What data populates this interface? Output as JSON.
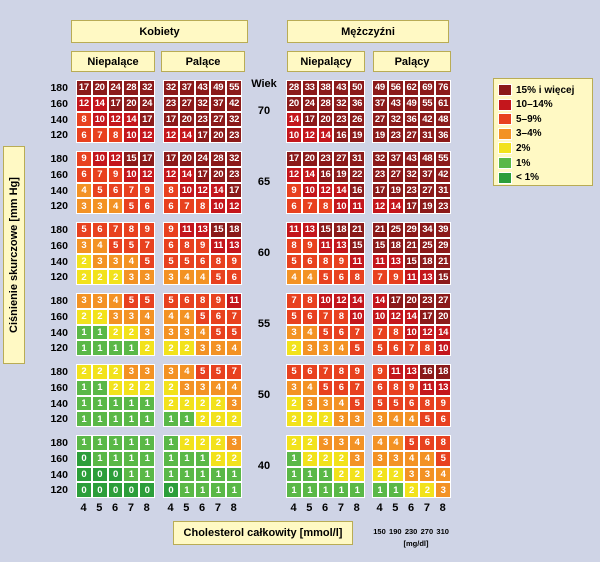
{
  "headers": {
    "women": "Kobiety",
    "men": "Mężczyźni",
    "women_nonsmoking": "Niepalące",
    "women_smoking": "Palące",
    "men_nonsmoking": "Niepalący",
    "men_smoking": "Palący",
    "age_label": "Wiek"
  },
  "axis": {
    "y_label": "Ciśnienie skurczowe [mm Hg]",
    "x_label": "Cholesterol całkowity [mmol/l]",
    "x_ticks_mmol": [
      "4",
      "5",
      "6",
      "7",
      "8"
    ],
    "x_ticks_mgdl": [
      "150",
      "190",
      "230",
      "270",
      "310"
    ],
    "mgdl_unit": "[mg/dl]",
    "sbp_ticks": [
      "180",
      "160",
      "140",
      "120"
    ]
  },
  "legend": [
    {
      "label": "15% i więcej",
      "color": "#8b1a1a"
    },
    {
      "label": "10–14%",
      "color": "#c4161c"
    },
    {
      "label": "5–9%",
      "color": "#e8411f"
    },
    {
      "label": "3–4%",
      "color": "#f39224"
    },
    {
      "label": "2%",
      "color": "#f2e21c"
    },
    {
      "label": "1%",
      "color": "#5ab847"
    },
    {
      "label": "< 1%",
      "color": "#2c9e3a"
    }
  ],
  "chart_data": {
    "type": "heatmap",
    "title": "",
    "xlabel": "Cholesterol całkowity [mmol/l]",
    "ylabel": "Ciśnienie skurczowe [mm Hg]",
    "x": [
      4,
      5,
      6,
      7,
      8
    ],
    "y_sbp": [
      180,
      160,
      140,
      120
    ],
    "ages": [
      70,
      65,
      60,
      55,
      50,
      40
    ],
    "color_bins": [
      {
        "min": 15,
        "label": "15% i więcej"
      },
      {
        "min": 10,
        "max": 14,
        "label": "10–14%"
      },
      {
        "min": 5,
        "max": 9,
        "label": "5–9%"
      },
      {
        "min": 3,
        "max": 4,
        "label": "3–4%"
      },
      {
        "min": 2,
        "max": 2,
        "label": "2%"
      },
      {
        "min": 1,
        "max": 1,
        "label": "1%"
      },
      {
        "max": 0,
        "label": "< 1%"
      }
    ],
    "panels": [
      {
        "group": "Kobiety",
        "subgroup": "Niepalące",
        "blocks": [
          [
            [
              17,
              20,
              24,
              28,
              32
            ],
            [
              12,
              14,
              17,
              20,
              24
            ],
            [
              8,
              10,
              12,
              14,
              17
            ],
            [
              6,
              7,
              8,
              10,
              12
            ]
          ],
          [
            [
              9,
              10,
              12,
              15,
              17
            ],
            [
              6,
              7,
              9,
              10,
              12
            ],
            [
              4,
              5,
              6,
              7,
              9
            ],
            [
              3,
              3,
              4,
              5,
              6
            ]
          ],
          [
            [
              5,
              6,
              7,
              8,
              9
            ],
            [
              3,
              4,
              5,
              5,
              7
            ],
            [
              2,
              3,
              3,
              4,
              5
            ],
            [
              2,
              2,
              2,
              3,
              3
            ]
          ],
          [
            [
              3,
              3,
              4,
              5,
              5
            ],
            [
              2,
              2,
              3,
              3,
              4
            ],
            [
              1,
              1,
              2,
              2,
              3
            ],
            [
              1,
              1,
              1,
              1,
              2
            ]
          ],
          [
            [
              2,
              2,
              2,
              3,
              3
            ],
            [
              1,
              1,
              2,
              2,
              2
            ],
            [
              1,
              1,
              1,
              1,
              1
            ],
            [
              1,
              1,
              1,
              1,
              1
            ]
          ],
          [
            [
              1,
              1,
              1,
              1,
              1
            ],
            [
              0,
              1,
              1,
              1,
              1
            ],
            [
              0,
              0,
              0,
              1,
              1
            ],
            [
              0,
              0,
              0,
              0,
              0
            ]
          ]
        ]
      },
      {
        "group": "Kobiety",
        "subgroup": "Palące",
        "blocks": [
          [
            [
              32,
              37,
              43,
              49,
              55
            ],
            [
              23,
              27,
              32,
              37,
              42
            ],
            [
              17,
              20,
              23,
              27,
              32
            ],
            [
              12,
              14,
              17,
              20,
              23
            ]
          ],
          [
            [
              17,
              20,
              24,
              28,
              32
            ],
            [
              12,
              14,
              17,
              20,
              23
            ],
            [
              8,
              10,
              12,
              14,
              17
            ],
            [
              6,
              7,
              8,
              10,
              12
            ]
          ],
          [
            [
              9,
              11,
              13,
              15,
              18
            ],
            [
              6,
              8,
              9,
              11,
              13
            ],
            [
              5,
              5,
              6,
              8,
              9
            ],
            [
              3,
              4,
              4,
              5,
              6
            ]
          ],
          [
            [
              5,
              6,
              8,
              9,
              11
            ],
            [
              4,
              4,
              5,
              6,
              7
            ],
            [
              3,
              3,
              4,
              5,
              5
            ],
            [
              2,
              2,
              3,
              3,
              4
            ]
          ],
          [
            [
              3,
              4,
              5,
              5,
              7
            ],
            [
              2,
              3,
              3,
              4,
              4
            ],
            [
              2,
              2,
              2,
              2,
              3
            ],
            [
              1,
              1,
              2,
              2,
              2
            ]
          ],
          [
            [
              1,
              2,
              2,
              2,
              3
            ],
            [
              1,
              1,
              1,
              2,
              2
            ],
            [
              1,
              1,
              1,
              1,
              1
            ],
            [
              0,
              1,
              1,
              1,
              1
            ]
          ]
        ]
      },
      {
        "group": "Mężczyźni",
        "subgroup": "Niepalący",
        "blocks": [
          [
            [
              28,
              33,
              38,
              43,
              50
            ],
            [
              20,
              24,
              28,
              32,
              36
            ],
            [
              14,
              17,
              20,
              23,
              26
            ],
            [
              10,
              12,
              14,
              16,
              19
            ]
          ],
          [
            [
              17,
              20,
              23,
              27,
              31
            ],
            [
              12,
              14,
              16,
              19,
              22
            ],
            [
              9,
              10,
              12,
              14,
              16
            ],
            [
              6,
              7,
              8,
              10,
              11
            ]
          ],
          [
            [
              11,
              13,
              15,
              18,
              21
            ],
            [
              8,
              9,
              11,
              13,
              15
            ],
            [
              5,
              6,
              8,
              9,
              11
            ],
            [
              4,
              4,
              5,
              6,
              8
            ]
          ],
          [
            [
              7,
              8,
              10,
              12,
              14
            ],
            [
              5,
              6,
              7,
              8,
              10
            ],
            [
              3,
              4,
              5,
              6,
              7
            ],
            [
              2,
              3,
              3,
              4,
              5
            ]
          ],
          [
            [
              5,
              6,
              7,
              8,
              9
            ],
            [
              3,
              4,
              5,
              6,
              7
            ],
            [
              2,
              3,
              3,
              4,
              5
            ],
            [
              2,
              2,
              2,
              3,
              3
            ]
          ],
          [
            [
              2,
              2,
              3,
              3,
              4
            ],
            [
              1,
              2,
              2,
              2,
              3
            ],
            [
              1,
              1,
              1,
              2,
              2
            ],
            [
              1,
              1,
              1,
              1,
              1
            ]
          ]
        ]
      },
      {
        "group": "Mężczyźni",
        "subgroup": "Palący",
        "blocks": [
          [
            [
              49,
              56,
              62,
              69,
              76
            ],
            [
              37,
              43,
              49,
              55,
              61
            ],
            [
              27,
              32,
              36,
              42,
              48
            ],
            [
              19,
              23,
              27,
              31,
              36
            ]
          ],
          [
            [
              32,
              37,
              43,
              48,
              55
            ],
            [
              23,
              27,
              32,
              37,
              42
            ],
            [
              17,
              19,
              23,
              27,
              31
            ],
            [
              12,
              14,
              17,
              19,
              23
            ]
          ],
          [
            [
              21,
              25,
              29,
              34,
              39
            ],
            [
              15,
              18,
              21,
              25,
              29
            ],
            [
              11,
              13,
              15,
              18,
              21
            ],
            [
              7,
              9,
              11,
              13,
              15
            ]
          ],
          [
            [
              14,
              17,
              20,
              23,
              27
            ],
            [
              10,
              12,
              14,
              17,
              20
            ],
            [
              7,
              8,
              10,
              12,
              14
            ],
            [
              5,
              6,
              7,
              8,
              10
            ]
          ],
          [
            [
              9,
              11,
              13,
              16,
              18
            ],
            [
              6,
              8,
              9,
              11,
              13
            ],
            [
              5,
              5,
              6,
              8,
              9
            ],
            [
              3,
              4,
              4,
              5,
              6
            ]
          ],
          [
            [
              4,
              4,
              5,
              6,
              8
            ],
            [
              3,
              3,
              4,
              4,
              5
            ],
            [
              2,
              2,
              3,
              3,
              4
            ],
            [
              1,
              1,
              2,
              2,
              3
            ]
          ]
        ]
      }
    ]
  }
}
